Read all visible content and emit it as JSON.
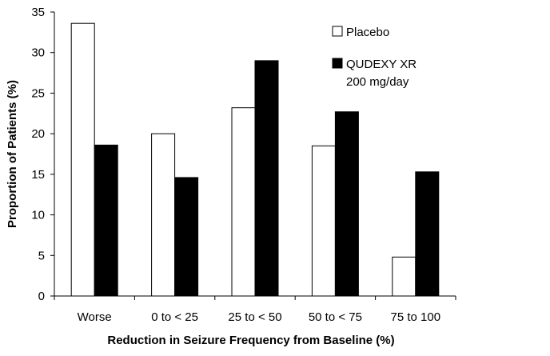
{
  "chart_data": {
    "type": "bar",
    "categories": [
      "Worse",
      "0 to < 25",
      "25 to < 50",
      "50 to < 75",
      "75 to 100"
    ],
    "series": [
      {
        "name": "Placebo",
        "values": [
          33.6,
          20.0,
          23.2,
          18.5,
          4.8
        ],
        "fill": "#ffffff"
      },
      {
        "name": "QUDEXY XR 200 mg/day",
        "name_lines": [
          "QUDEXY XR",
          "200 mg/day"
        ],
        "values": [
          18.6,
          14.6,
          29.0,
          22.7,
          15.3
        ],
        "fill": "#000000"
      }
    ],
    "xlabel": "Reduction in Seizure Frequency from Baseline (%)",
    "ylabel": "Proportion of Patients (%)",
    "ylim": [
      0,
      35
    ],
    "yticks": [
      0,
      5,
      10,
      15,
      20,
      25,
      30,
      35
    ],
    "grid": false,
    "legend_position": "top-right"
  }
}
